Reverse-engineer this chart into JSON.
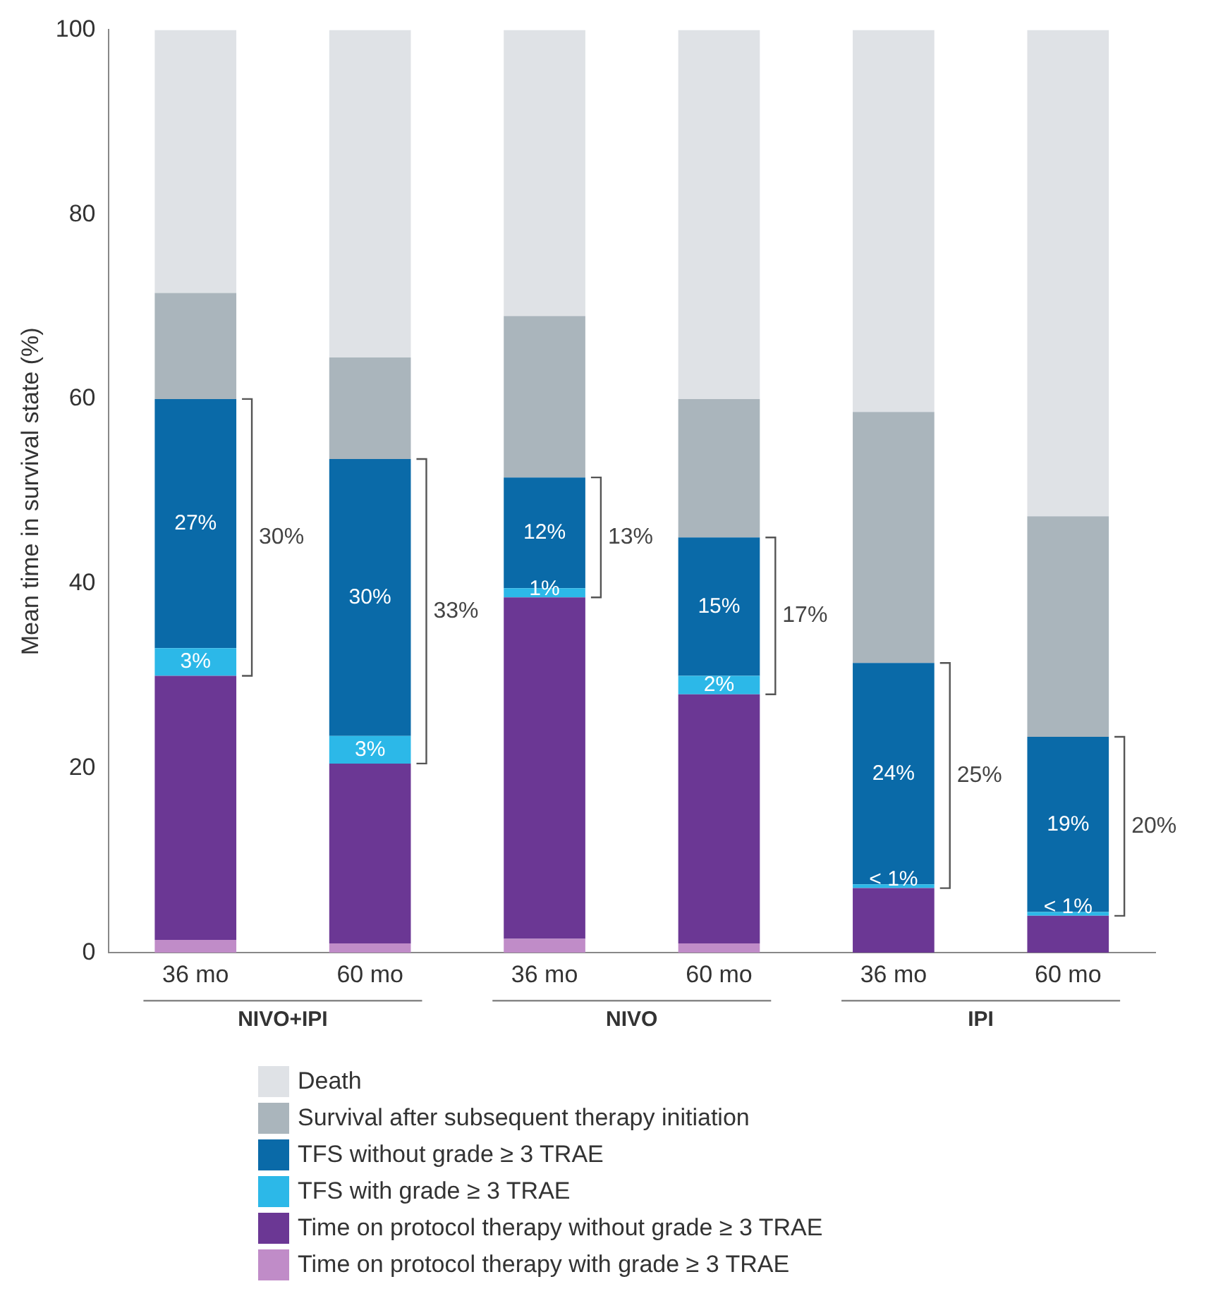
{
  "chart_data": {
    "type": "bar",
    "stacked": true,
    "ylabel": "Mean time in survival state (%)",
    "categories": [
      "36 mo",
      "60 mo",
      "36 mo",
      "60 mo",
      "36 mo",
      "60 mo"
    ],
    "series": [
      {
        "name": "Time on protocol therapy with grade ≥ 3 TRAE",
        "color": "#c08cc8",
        "values": [
          1.4,
          1,
          1.5,
          1,
          0,
          0
        ]
      },
      {
        "name": "Time on protocol therapy without grade ≥ 3 TRAE",
        "color": "#6b3794",
        "values": [
          28.6,
          19.5,
          37,
          27,
          7,
          4
        ]
      },
      {
        "name": "TFS with grade ≥ 3 TRAE",
        "color": "#2cb8e8",
        "values": [
          3,
          3,
          1,
          2,
          0.4,
          0.4
        ],
        "value_labels": [
          "3%",
          "3%",
          "1%",
          "2%",
          "< 1%",
          "< 1%"
        ]
      },
      {
        "name": "TFS without grade ≥ 3 TRAE",
        "color": "#0a6aa8",
        "values": [
          27,
          30,
          12,
          15,
          24,
          19
        ],
        "value_labels": [
          "27%",
          "30%",
          "12%",
          "15%",
          "24%",
          "19%"
        ]
      },
      {
        "name": "Survival after subsequent therapy initiation",
        "color": "#aab5bc",
        "values": [
          11.5,
          11,
          17.5,
          15,
          27.2,
          23.9
        ]
      },
      {
        "name": "Death",
        "color": "#dfe2e6",
        "values": [
          28.5,
          35.5,
          31,
          40,
          41.4,
          52.7
        ]
      }
    ],
    "annotations": [
      "30%",
      "33%",
      "13%",
      "17%",
      "25%",
      "20%",
      "NIVO+IPI",
      "NIVO",
      "IPI"
    ],
    "ylim": [
      0,
      100
    ],
    "yticks": [
      0,
      20,
      40,
      60,
      80,
      100
    ],
    "grid": false,
    "legend": "bottom"
  }
}
